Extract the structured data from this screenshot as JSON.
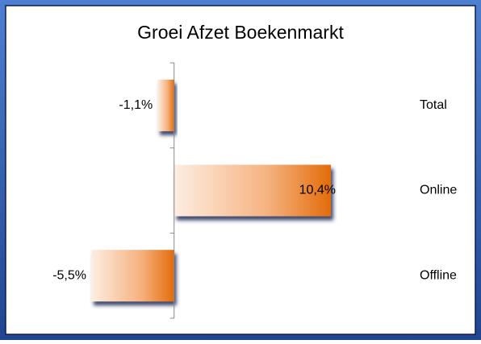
{
  "chart_data": {
    "type": "bar",
    "orientation": "horizontal",
    "title": "Groei Afzet Boekenmarkt",
    "categories": [
      "Total",
      "Online",
      "Offline"
    ],
    "values": [
      -1.1,
      10.4,
      -5.5
    ],
    "value_labels": [
      "-1,1%",
      "10,4%",
      "-5,5%"
    ],
    "color": "#e36c0a"
  }
}
